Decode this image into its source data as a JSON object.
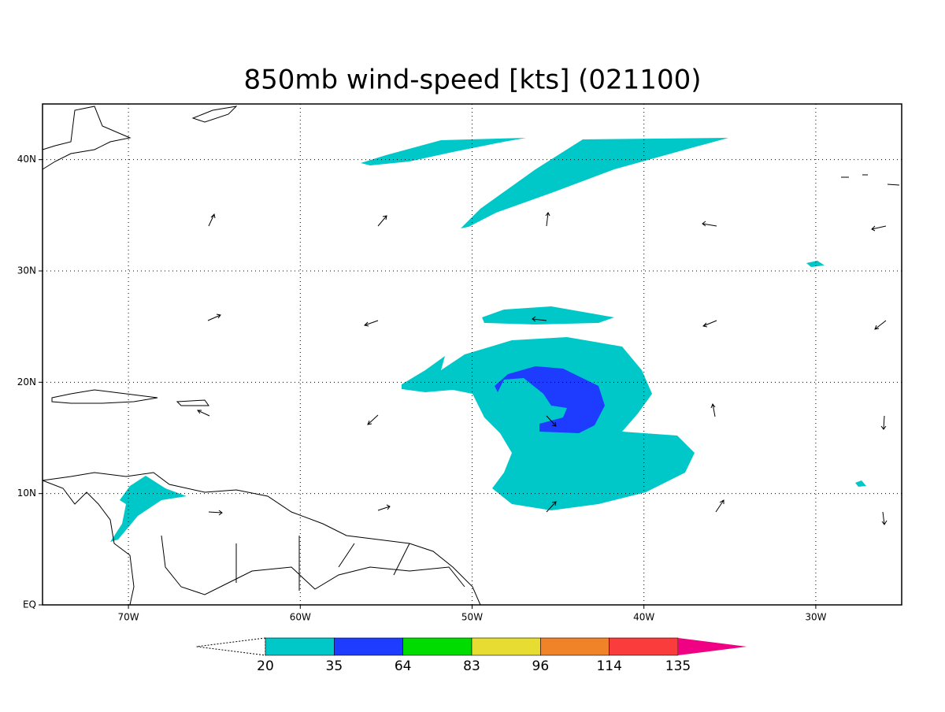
{
  "title": "850mb wind-speed [kts] (021100)",
  "map": {
    "lonlim": [
      -75,
      -25
    ],
    "latlim": [
      0,
      45
    ],
    "lon_ticks": [
      {
        "value": -70,
        "label": "70W"
      },
      {
        "value": -60,
        "label": "60W"
      },
      {
        "value": -50,
        "label": "50W"
      },
      {
        "value": -40,
        "label": "40W"
      },
      {
        "value": -30,
        "label": "30W"
      }
    ],
    "lat_ticks": [
      {
        "value": 0,
        "label": "EQ"
      },
      {
        "value": 10,
        "label": "10N"
      },
      {
        "value": 20,
        "label": "20N"
      },
      {
        "value": 30,
        "label": "30N"
      },
      {
        "value": 40,
        "label": "40N"
      }
    ]
  },
  "colorbar": {
    "levels": [
      20,
      35,
      64,
      83,
      96,
      114,
      135
    ],
    "colors": [
      "#ffffff",
      "#00c8c8",
      "#1e3cff",
      "#00dc00",
      "#e6dc32",
      "#f08228",
      "#fa3c3c",
      "#f00082"
    ]
  }
}
